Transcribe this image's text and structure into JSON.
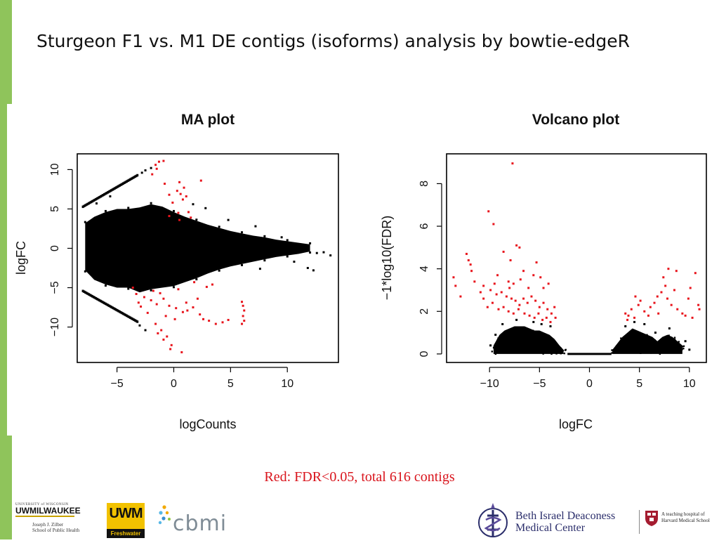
{
  "slide": {
    "title": "Sturgeon F1 vs. M1 DE contigs (isoforms) analysis by bowtie-edgeR",
    "accent_color": "#8fc45b",
    "footnote": "Red: FDR<0.05, total 616 contigs",
    "footnote_color": "#d9141c"
  },
  "logos": {
    "uwm": {
      "top_text": "UNIVERSITY of WISCONSIN",
      "main_text": "UWMILWAUKEE",
      "sub_line1": "Joseph J. Zilber",
      "sub_line2": "School of Public Health"
    },
    "freshwater": {
      "letters": "UWM",
      "band_text": "Freshwater"
    },
    "cbmi": {
      "text": "cbmi"
    },
    "bidmc": {
      "line1": "Beth Israel Deaconess",
      "line2": "Medical Center",
      "note_line1": "A teaching hospital of",
      "note_line2": "Harvard Medical School"
    }
  },
  "chart_data": [
    {
      "type": "scatter",
      "title": "MA plot",
      "xlabel": "logCounts",
      "ylabel": "logFC",
      "xlim": [
        -8.5,
        14.5
      ],
      "ylim": [
        -14.5,
        12
      ],
      "xticks": [
        -5,
        0,
        5,
        10
      ],
      "yticks": [
        -10,
        -5,
        0,
        5,
        10
      ],
      "colors": {
        "not_significant": "#000000",
        "significant": "#e8141c"
      },
      "dense_region_black": [
        [
          -7.8,
          3.2,
          -2.8
        ],
        [
          -7,
          4,
          -4
        ],
        [
          -6,
          4.6,
          -4.6
        ],
        [
          -5,
          5,
          -5
        ],
        [
          -4,
          5,
          -5
        ],
        [
          -3,
          5.2,
          -5.6
        ],
        [
          -2,
          5.6,
          -5.2
        ],
        [
          -1,
          5.3,
          -5
        ],
        [
          0,
          4.6,
          -4.8
        ],
        [
          1,
          4,
          -4.3
        ],
        [
          2,
          3.5,
          -3.8
        ],
        [
          3,
          3,
          -3.2
        ],
        [
          4,
          2.6,
          -2.7
        ],
        [
          5,
          2.2,
          -2.3
        ],
        [
          6,
          1.9,
          -2
        ],
        [
          7,
          1.6,
          -1.7
        ],
        [
          8,
          1.4,
          -1.4
        ],
        [
          9,
          1.1,
          -1.1
        ],
        [
          10,
          0.9,
          -0.9
        ],
        [
          11,
          0.7,
          -0.7
        ],
        [
          12,
          0.5,
          -0.4
        ]
      ],
      "diagonal_bands_black": [
        {
          "from": [
            -8,
            5.3
          ],
          "to": [
            -3.2,
            9.3
          ]
        },
        {
          "from": [
            -8,
            -5.4
          ],
          "to": [
            -3.2,
            -9.3
          ]
        }
      ],
      "points_black": [
        [
          12.6,
          -0.6
        ],
        [
          13.2,
          -0.5
        ],
        [
          13.8,
          -0.9
        ],
        [
          11.8,
          -2.5
        ],
        [
          12.3,
          -2.8
        ],
        [
          7.6,
          -2.6
        ],
        [
          7.2,
          2.8
        ],
        [
          4.8,
          3.6
        ],
        [
          2.8,
          5.1
        ],
        [
          1.7,
          5.6
        ],
        [
          -2.5,
          9.9
        ],
        [
          -2,
          10.2
        ],
        [
          -2.8,
          9.6
        ],
        [
          -3,
          -9.8
        ],
        [
          -2.5,
          -10.4
        ],
        [
          -6.8,
          5.7
        ],
        [
          -5.6,
          6.6
        ],
        [
          6.9,
          0.6
        ],
        [
          9.5,
          1.4
        ],
        [
          10.6,
          -1.7
        ]
      ],
      "points_red": [
        [
          -1.6,
          10.6
        ],
        [
          -1.3,
          11
        ],
        [
          -0.9,
          11.1
        ],
        [
          -1.9,
          9.4
        ],
        [
          -1.5,
          10.1
        ],
        [
          -0.8,
          8.2
        ],
        [
          0.5,
          8.4
        ],
        [
          0.9,
          7.7
        ],
        [
          1.1,
          6.6
        ],
        [
          0.6,
          6.9
        ],
        [
          0.3,
          7.3
        ],
        [
          0.8,
          6.2
        ],
        [
          -0.4,
          6.8
        ],
        [
          -0.1,
          5.8
        ],
        [
          0.4,
          4.5
        ],
        [
          1.5,
          3.9
        ],
        [
          0.5,
          3.6
        ],
        [
          2.4,
          8.6
        ],
        [
          -0.4,
          4.1
        ],
        [
          1.3,
          4.6
        ],
        [
          -3.3,
          -5.8
        ],
        [
          -2.6,
          -6.2
        ],
        [
          -2,
          -6.6
        ],
        [
          -1.8,
          -5.4
        ],
        [
          -1.2,
          -5.7
        ],
        [
          -0.9,
          -6.4
        ],
        [
          -0.4,
          -7.3
        ],
        [
          0.2,
          -7.6
        ],
        [
          0.8,
          -8.1
        ],
        [
          1.2,
          -7.9
        ],
        [
          1.7,
          -7.5
        ],
        [
          2.3,
          -8.4
        ],
        [
          2.6,
          -9
        ],
        [
          3.1,
          -9.2
        ],
        [
          3.7,
          -9.6
        ],
        [
          4.3,
          -9.4
        ],
        [
          4.8,
          -9.1
        ],
        [
          0.4,
          -5.2
        ],
        [
          1.8,
          -4.3
        ],
        [
          2.9,
          -4.9
        ],
        [
          3.4,
          -4.6
        ],
        [
          -2.9,
          -7.4
        ],
        [
          -2.3,
          -8.2
        ],
        [
          -3.6,
          -5
        ],
        [
          -1.6,
          -9.6
        ],
        [
          -1.1,
          -10.4
        ],
        [
          -0.6,
          -11.2
        ],
        [
          -0.2,
          -12.3
        ],
        [
          -0.9,
          -11.6
        ],
        [
          -1.4,
          -10.8
        ],
        [
          0.7,
          -13.2
        ],
        [
          -0.3,
          -12.8
        ],
        [
          6,
          -6.8
        ],
        [
          6.1,
          -7.3
        ],
        [
          6.2,
          -7.9
        ],
        [
          6.1,
          -8.6
        ],
        [
          6.2,
          -9.2
        ],
        [
          6,
          -9.6
        ],
        [
          -1.5,
          -7.1
        ],
        [
          -0.7,
          -8.6
        ],
        [
          0.1,
          -9
        ],
        [
          1.1,
          -6.9
        ],
        [
          2.1,
          -6.4
        ],
        [
          -3.1,
          -6.9
        ]
      ]
    },
    {
      "type": "scatter",
      "title": "Volcano plot",
      "xlabel": "logFC",
      "ylabel": "−1*log10(FDR)",
      "xlim": [
        -14.3,
        11.7
      ],
      "ylim": [
        -0.4,
        9.4
      ],
      "xticks": [
        -10,
        -5,
        0,
        5,
        10
      ],
      "yticks": [
        0,
        2,
        4,
        6,
        8
      ],
      "colors": {
        "not_significant": "#000000",
        "significant": "#e8141c"
      },
      "baseline_black": {
        "y": 0,
        "from_x": -2.2,
        "to_x": 2.2
      },
      "dense_region_black": [
        [
          -9.6,
          0.4
        ],
        [
          -9,
          0.9
        ],
        [
          -8.5,
          1.1
        ],
        [
          -8,
          1.2
        ],
        [
          -7.5,
          1.3
        ],
        [
          -7,
          1.3
        ],
        [
          -6.5,
          1.3
        ],
        [
          -6,
          1.2
        ],
        [
          -5.5,
          1.1
        ],
        [
          -5,
          1.1
        ],
        [
          -4.5,
          1
        ],
        [
          -4,
          0.9
        ],
        [
          -3.5,
          0.7
        ],
        [
          -3,
          0.4
        ],
        [
          -2.6,
          0.2
        ],
        [
          2.3,
          0.2
        ],
        [
          2.8,
          0.5
        ],
        [
          3.3,
          0.8
        ],
        [
          3.8,
          1
        ],
        [
          4.3,
          1.2
        ],
        [
          4.8,
          1.1
        ],
        [
          5.3,
          1
        ],
        [
          5.8,
          0.9
        ],
        [
          6.3,
          0.8
        ],
        [
          6.8,
          0.6
        ],
        [
          7.3,
          0.8
        ],
        [
          7.8,
          0.9
        ],
        [
          8.3,
          0.8
        ],
        [
          8.8,
          0.6
        ],
        [
          9.3,
          0.4
        ]
      ],
      "points_black": [
        [
          -7.3,
          1.6
        ],
        [
          -5.6,
          1.5
        ],
        [
          -4.8,
          1.4
        ],
        [
          -3.9,
          1.3
        ],
        [
          -8.7,
          1.4
        ],
        [
          -9.4,
          0.9
        ],
        [
          -9.9,
          0.4
        ],
        [
          3.6,
          1.3
        ],
        [
          4.5,
          1.5
        ],
        [
          5.5,
          1.4
        ],
        [
          6.6,
          1
        ],
        [
          8,
          1.2
        ],
        [
          9.6,
          0.6
        ],
        [
          10,
          0.2
        ]
      ],
      "points_red": [
        [
          -7.7,
          8.95
        ],
        [
          -10.1,
          6.7
        ],
        [
          -9.6,
          6.1
        ],
        [
          -7.3,
          5.1
        ],
        [
          -7,
          5
        ],
        [
          -8.6,
          4.8
        ],
        [
          -12.3,
          4.7
        ],
        [
          -7.9,
          4.4
        ],
        [
          -11.9,
          4.2
        ],
        [
          -12.1,
          4.4
        ],
        [
          -11.8,
          3.9
        ],
        [
          -5.3,
          4.3
        ],
        [
          -5.6,
          3.7
        ],
        [
          -9.2,
          3.7
        ],
        [
          -8.1,
          3.4
        ],
        [
          -7.6,
          3.3
        ],
        [
          -6.6,
          3.9
        ],
        [
          -4.9,
          3.6
        ],
        [
          -4.6,
          3.1
        ],
        [
          -4.1,
          3.3
        ],
        [
          -13.6,
          3.6
        ],
        [
          -13.4,
          3.2
        ],
        [
          -12.9,
          2.7
        ],
        [
          -10.6,
          3.2
        ],
        [
          -10.9,
          2.9
        ],
        [
          -9.9,
          3
        ],
        [
          -9.3,
          2.8
        ],
        [
          -8.8,
          2.9
        ],
        [
          -8.3,
          2.7
        ],
        [
          -7.8,
          2.6
        ],
        [
          -7.4,
          2.5
        ],
        [
          -7,
          2.3
        ],
        [
          -6.6,
          2.6
        ],
        [
          -6.2,
          2.4
        ],
        [
          -5.8,
          2.7
        ],
        [
          -5.4,
          2.5
        ],
        [
          -5,
          2.2
        ],
        [
          -4.6,
          2.4
        ],
        [
          -4.2,
          2.1
        ],
        [
          -3.8,
          1.9
        ],
        [
          -3.4,
          1.7
        ],
        [
          -10.2,
          2.2
        ],
        [
          -9.7,
          2.4
        ],
        [
          -9.1,
          2.1
        ],
        [
          -8.6,
          2.2
        ],
        [
          -8.1,
          2
        ],
        [
          -7.6,
          1.9
        ],
        [
          -7.1,
          2.1
        ],
        [
          -6.5,
          1.9
        ],
        [
          -6,
          1.8
        ],
        [
          -5.5,
          1.7
        ],
        [
          -5.1,
          1.9
        ],
        [
          -4.7,
          1.6
        ],
        [
          -4.3,
          1.7
        ],
        [
          -3.9,
          1.5
        ],
        [
          -3.5,
          2.2
        ],
        [
          -10.6,
          2.6
        ],
        [
          -11.5,
          3.4
        ],
        [
          -9.5,
          3.3
        ],
        [
          -8,
          3.1
        ],
        [
          -6.9,
          3.5
        ],
        [
          -6.1,
          3.1
        ],
        [
          7.9,
          4
        ],
        [
          10.6,
          3.8
        ],
        [
          8.7,
          3.9
        ],
        [
          10.1,
          3.1
        ],
        [
          9.9,
          2.6
        ],
        [
          10.9,
          2.3
        ],
        [
          11,
          2.1
        ],
        [
          4.6,
          2.7
        ],
        [
          5.1,
          2.5
        ],
        [
          4.9,
          2.3
        ],
        [
          4.2,
          2.1
        ],
        [
          3.9,
          1.8
        ],
        [
          3.6,
          1.9
        ],
        [
          4.5,
          1.7
        ],
        [
          5.5,
          2
        ],
        [
          6.1,
          2.2
        ],
        [
          6.5,
          2.4
        ],
        [
          6.8,
          2.7
        ],
        [
          7.2,
          2.9
        ],
        [
          7.6,
          3.2
        ],
        [
          7.4,
          3.6
        ],
        [
          8.2,
          2.3
        ],
        [
          8.8,
          2.1
        ],
        [
          9.3,
          1.9
        ],
        [
          9.6,
          1.8
        ],
        [
          10.3,
          1.7
        ],
        [
          6.9,
          1.9
        ],
        [
          7.8,
          2.6
        ],
        [
          5.9,
          1.8
        ],
        [
          3.8,
          1.6
        ],
        [
          8.5,
          3
        ]
      ]
    }
  ]
}
